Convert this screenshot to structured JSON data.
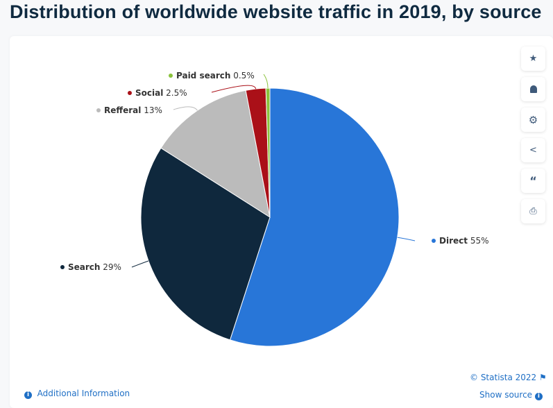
{
  "title": "Distribution of worldwide website traffic in 2019, by source",
  "chart_data": {
    "type": "pie",
    "title": "Distribution of worldwide website traffic in 2019, by source",
    "categories": [
      "Direct",
      "Search",
      "Refferal",
      "Social",
      "Paid search"
    ],
    "values": [
      55,
      29,
      13,
      2.5,
      0.5
    ],
    "value_labels": [
      "55%",
      "29%",
      "13%",
      "2.5%",
      "0.5%"
    ],
    "colors": [
      "#2876d8",
      "#0f283d",
      "#bbbbbb",
      "#aa1018",
      "#8ac23c"
    ],
    "start_angle": "top, clockwise"
  },
  "toolbar": [
    "star-icon",
    "bell-icon",
    "gear-icon",
    "share-icon",
    "quote-icon",
    "print-icon"
  ],
  "footer": {
    "copyright": "© Statista 2022",
    "additional_info": "Additional Information",
    "show_source": "Show source"
  }
}
